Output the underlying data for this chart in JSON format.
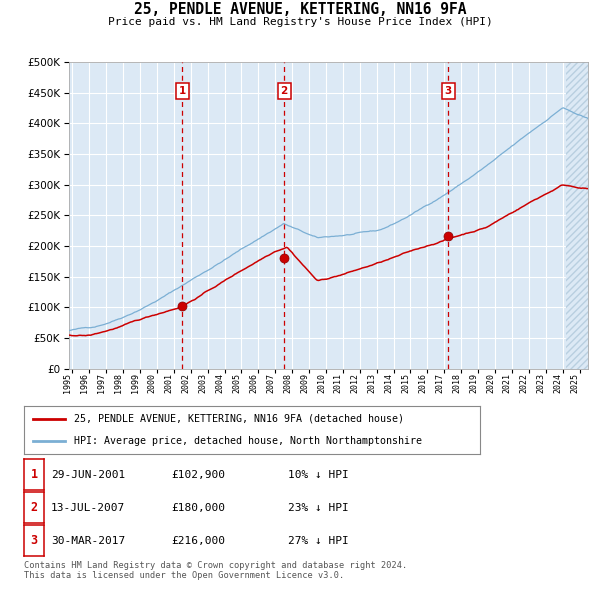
{
  "title": "25, PENDLE AVENUE, KETTERING, NN16 9FA",
  "subtitle": "Price paid vs. HM Land Registry's House Price Index (HPI)",
  "background_color": "#dce9f5",
  "hatch_color": "#b8cfe0",
  "grid_color": "#ffffff",
  "red_line_color": "#cc0000",
  "blue_line_color": "#7bafd4",
  "dashed_line_color": "#cc0000",
  "sale_points": [
    {
      "date_num": 2001.49,
      "value": 102900,
      "label": "1"
    },
    {
      "date_num": 2007.53,
      "value": 180000,
      "label": "2"
    },
    {
      "date_num": 2017.24,
      "value": 216000,
      "label": "3"
    }
  ],
  "legend_items": [
    {
      "label": "25, PENDLE AVENUE, KETTERING, NN16 9FA (detached house)",
      "color": "#cc0000"
    },
    {
      "label": "HPI: Average price, detached house, North Northamptonshire",
      "color": "#7bafd4"
    }
  ],
  "table_rows": [
    {
      "num": "1",
      "date": "29-JUN-2001",
      "price": "£102,900",
      "hpi": "10% ↓ HPI"
    },
    {
      "num": "2",
      "date": "13-JUL-2007",
      "price": "£180,000",
      "hpi": "23% ↓ HPI"
    },
    {
      "num": "3",
      "date": "30-MAR-2017",
      "price": "£216,000",
      "hpi": "27% ↓ HPI"
    }
  ],
  "footer": "Contains HM Land Registry data © Crown copyright and database right 2024.\nThis data is licensed under the Open Government Licence v3.0.",
  "yticks": [
    0,
    50000,
    100000,
    150000,
    200000,
    250000,
    300000,
    350000,
    400000,
    450000,
    500000
  ],
  "xlim_start": 1994.8,
  "xlim_end": 2025.5,
  "hatch_start": 2024.17
}
